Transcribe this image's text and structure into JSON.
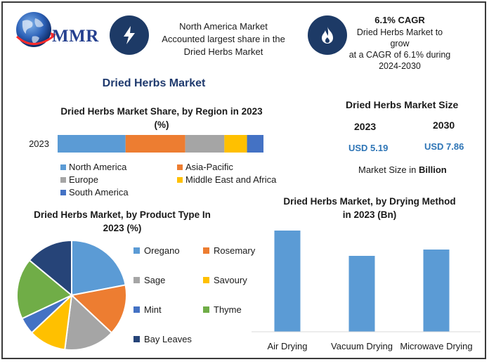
{
  "header": {
    "logo_text": "MMR",
    "region_note": [
      "North America Market",
      "Accounted largest share in the",
      "Dried Herbs Market"
    ],
    "cagr_title": "6.1% CAGR",
    "cagr_note": [
      "Dried Herbs Market to grow",
      "at a CAGR of 6.1% during",
      "2024-2030"
    ],
    "icons": {
      "region": "lightning-bolt-icon",
      "cagr": "flame-icon"
    }
  },
  "title": "Dried Herbs Market",
  "market_size": {
    "title": "Dried Herbs Market Size",
    "years": [
      "2023",
      "2030"
    ],
    "values": [
      "USD 5.19",
      "USD 7.86"
    ],
    "unit_prefix": "Market Size in ",
    "unit_bold": "Billion"
  },
  "colors": {
    "blue": "#5b9bd5",
    "orange": "#ed7d31",
    "gray": "#a5a5a5",
    "gold": "#ffc000",
    "dark_blue": "#4472c4",
    "green": "#70ad47",
    "navy": "#264478",
    "value_text": "#2e75b6",
    "title_text": "#1f3a6e"
  },
  "chart_data": [
    {
      "type": "bar",
      "orientation": "horizontal-stacked",
      "title_lines": [
        "Dried Herbs Market Share, by Region in 2023",
        "(%)"
      ],
      "categories": [
        "2023"
      ],
      "series": [
        {
          "name": "North America",
          "values": [
            33
          ],
          "color": "#5b9bd5"
        },
        {
          "name": "Asia-Pacific",
          "values": [
            29
          ],
          "color": "#ed7d31"
        },
        {
          "name": "Europe",
          "values": [
            19
          ],
          "color": "#a5a5a5"
        },
        {
          "name": "Middle East and Africa",
          "values": [
            11
          ],
          "color": "#ffc000"
        },
        {
          "name": "South America",
          "values": [
            8
          ],
          "color": "#4472c4"
        }
      ],
      "xlim": [
        0,
        100
      ],
      "legend": "bottom"
    },
    {
      "type": "pie",
      "title_lines": [
        "Dried Herbs Market, by Product Type In",
        "2023 (%)"
      ],
      "labels": [
        "Oregano",
        "Rosemary",
        "Sage",
        "Savoury",
        "Mint",
        "Thyme",
        "Bay Leaves"
      ],
      "values": [
        22,
        15,
        15,
        11,
        5,
        18,
        14
      ],
      "colors": [
        "#5b9bd5",
        "#ed7d31",
        "#a5a5a5",
        "#ffc000",
        "#4472c4",
        "#70ad47",
        "#264478"
      ],
      "legend": "right"
    },
    {
      "type": "bar",
      "title_lines": [
        "Dried Herbs Market, by Drying Method",
        "in 2023 (Bn)"
      ],
      "categories": [
        "Air Drying",
        "Vacuum Drying",
        "Microwave Drying"
      ],
      "values": [
        2.4,
        1.8,
        1.95
      ],
      "ylim": [
        0,
        2.5
      ],
      "color": "#5b9bd5",
      "grid": false
    }
  ]
}
